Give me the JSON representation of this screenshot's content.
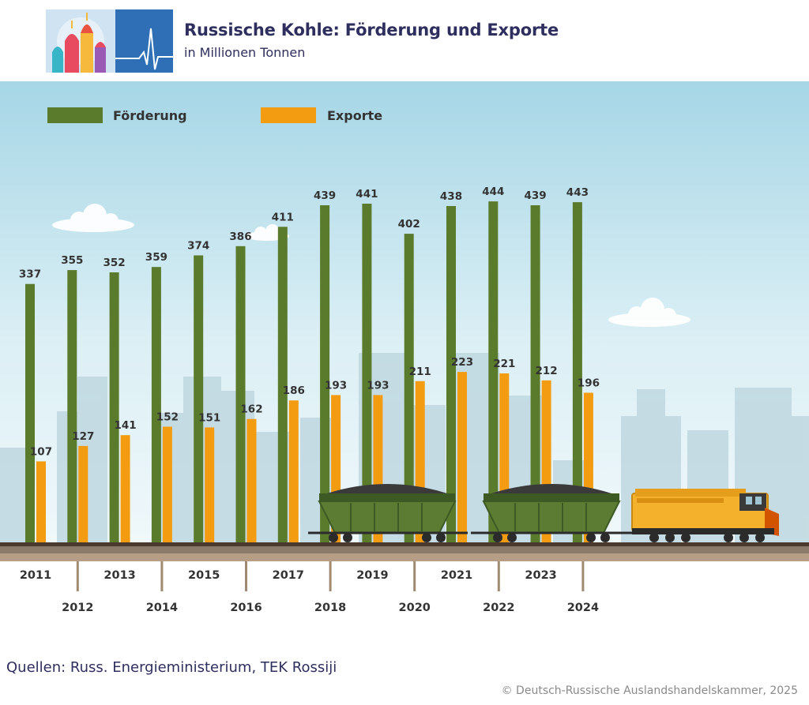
{
  "header": {
    "title": "Russische Kohle: Förderung und Exporte",
    "subtitle": "in Millionen Tonnen"
  },
  "chart_data": {
    "type": "bar",
    "title": "Russische Kohle: Förderung und Exporte",
    "subtitle": "in Millionen Tonnen",
    "xlabel": "",
    "ylabel": "",
    "ylim": [
      0,
      500
    ],
    "categories": [
      "2011",
      "2012",
      "2013",
      "2014",
      "2015",
      "2016",
      "2017",
      "2018",
      "2019",
      "2020",
      "2021",
      "2022",
      "2023",
      "2024"
    ],
    "series": [
      {
        "name": "Förderung",
        "color": "#5a7a2c",
        "values": [
          337,
          355,
          352,
          359,
          374,
          386,
          411,
          439,
          441,
          402,
          438,
          444,
          439,
          443
        ]
      },
      {
        "name": "Exporte",
        "color": "#f39c12",
        "values": [
          107,
          127,
          141,
          152,
          151,
          162,
          186,
          193,
          193,
          211,
          223,
          221,
          212,
          196
        ]
      }
    ],
    "legend": "top-left",
    "grid": false
  },
  "footer": {
    "source": "Quellen: Russ. Energieministerium, TEK Rossiji",
    "copyright": "© Deutsch-Russische Auslandshandelskammer, 2025"
  }
}
